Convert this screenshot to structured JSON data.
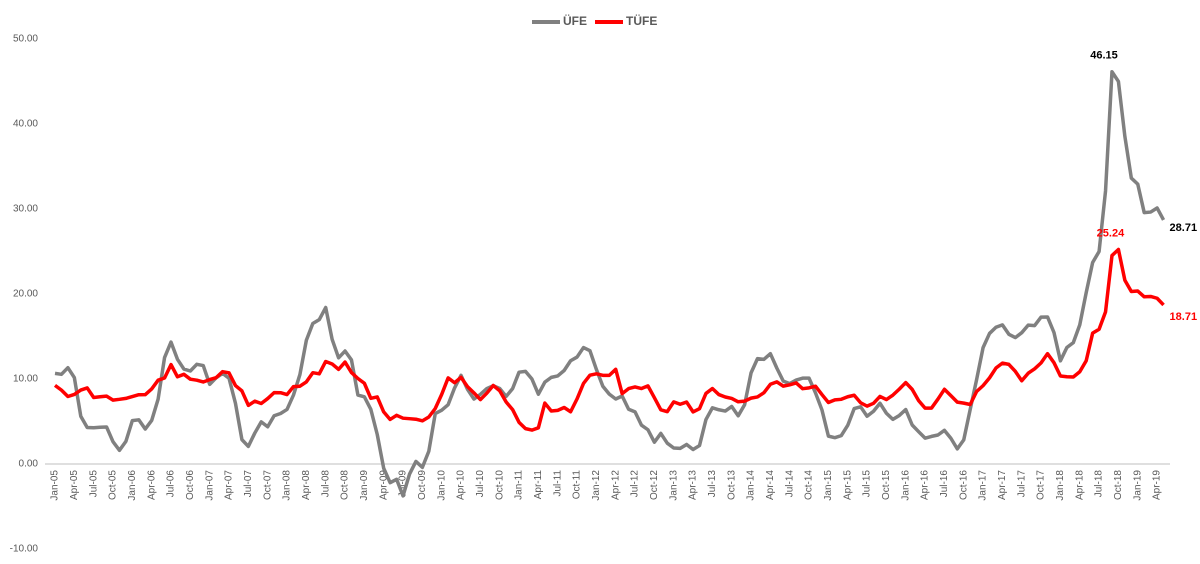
{
  "chart_data": {
    "type": "line",
    "categories": [
      "Jan-05",
      null,
      null,
      "Apr-05",
      null,
      null,
      "Jul-05",
      null,
      null,
      "Oct-05",
      null,
      null,
      "Jan-06",
      null,
      null,
      "Apr-06",
      null,
      null,
      "Jul-06",
      null,
      null,
      "Oct-06",
      null,
      null,
      "Jan-07",
      null,
      null,
      "Apr-07",
      null,
      null,
      "Jul-07",
      null,
      null,
      "Oct-07",
      null,
      null,
      "Jan-08",
      null,
      null,
      "Apr-08",
      null,
      null,
      "Jul-08",
      null,
      null,
      "Oct-08",
      null,
      null,
      "Jan-09",
      null,
      null,
      "Apr-09",
      null,
      null,
      "Jul-09",
      null,
      null,
      "Oct-09",
      null,
      null,
      "Jan-10",
      null,
      null,
      "Apr-10",
      null,
      null,
      "Jul-10",
      null,
      null,
      "Oct-10",
      null,
      null,
      "Jan-11",
      null,
      null,
      "Apr-11",
      null,
      null,
      "Jul-11",
      null,
      null,
      "Oct-11",
      null,
      null,
      "Jan-12",
      null,
      null,
      "Apr-12",
      null,
      null,
      "Jul-12",
      null,
      null,
      "Oct-12",
      null,
      null,
      "Jan-13",
      null,
      null,
      "Apr-13",
      null,
      null,
      "Jul-13",
      null,
      null,
      "Oct-13",
      null,
      null,
      "Jan-14",
      null,
      null,
      "Apr-14",
      null,
      null,
      "Jul-14",
      null,
      null,
      "Oct-14",
      null,
      null,
      "Jan-15",
      null,
      null,
      "Apr-15",
      null,
      null,
      "Jul-15",
      null,
      null,
      "Oct-15",
      null,
      null,
      "Jan-16",
      null,
      null,
      "Apr-16",
      null,
      null,
      "Jul-16",
      null,
      null,
      "Oct-16",
      null,
      null,
      "Jan-17",
      null,
      null,
      "Apr-17",
      null,
      null,
      "Jul-17",
      null,
      null,
      "Oct-17",
      null,
      null,
      "Jan-18",
      null,
      null,
      "Apr-18",
      null,
      null,
      "Jul-18",
      null,
      null,
      "Oct-18",
      null,
      null,
      "Jan-19",
      null,
      null,
      "Apr-19",
      null
    ],
    "series": [
      {
        "name": "ÜFE",
        "color": "#808080",
        "values": [
          10.66,
          10.55,
          11.33,
          10.17,
          5.62,
          4.3,
          4.26,
          4.32,
          4.36,
          2.62,
          1.61,
          2.66,
          5.1,
          5.2,
          4.11,
          5.12,
          7.63,
          12.52,
          14.34,
          12.32,
          11.17,
          10.94,
          11.73,
          11.58,
          9.37,
          10.14,
          10.66,
          10.09,
          7.14,
          2.87,
          2.07,
          3.64,
          4.96,
          4.38,
          5.68,
          5.94,
          6.42,
          8.11,
          10.52,
          14.56,
          16.53,
          16.98,
          18.41,
          14.67,
          12.49,
          13.29,
          12.24,
          8.11,
          7.9,
          6.43,
          3.47,
          -0.5,
          -2.2,
          -1.8,
          -3.75,
          -1.2,
          0.3,
          -0.4,
          1.5,
          5.93,
          6.33,
          6.98,
          8.95,
          10.43,
          8.79,
          7.64,
          8.19,
          8.87,
          9.21,
          8.88,
          7.95,
          8.87,
          10.8,
          10.9,
          10.0,
          8.21,
          9.63,
          10.19,
          10.36,
          11.0,
          12.15,
          12.58,
          13.7,
          13.33,
          11.13,
          9.15,
          8.22,
          7.65,
          8.0,
          6.44,
          6.13,
          4.56,
          4.03,
          2.57,
          3.6,
          2.45,
          1.88,
          1.84,
          2.3,
          1.7,
          2.17,
          5.23,
          6.61,
          6.38,
          6.23,
          6.77,
          5.67,
          6.97,
          10.72,
          12.4,
          12.31,
          12.98,
          11.28,
          9.75,
          9.46,
          9.88,
          10.1,
          10.1,
          8.36,
          6.36,
          3.28,
          3.1,
          3.34,
          4.55,
          6.52,
          6.73,
          5.62,
          6.21,
          7.15,
          5.97,
          5.25,
          5.71,
          6.4,
          4.59,
          3.8,
          3.04,
          3.25,
          3.41,
          3.96,
          3.03,
          1.78,
          2.84,
          6.41,
          9.94,
          13.69,
          15.36,
          16.09,
          16.37,
          15.26,
          14.87,
          15.45,
          16.34,
          16.28,
          17.28,
          17.3,
          15.47,
          12.14,
          13.71,
          14.28,
          16.37,
          20.16,
          23.71,
          25.0,
          32.13,
          46.15,
          45.01,
          38.54,
          33.64,
          32.93,
          29.58,
          29.64,
          30.12,
          28.71
        ],
        "value_labels": {
          "164": "46.15",
          "172": "28.71"
        }
      },
      {
        "name": "TÜFE",
        "color": "#ff0000",
        "values": [
          9.25,
          8.69,
          7.94,
          8.18,
          8.7,
          8.95,
          7.82,
          7.91,
          7.99,
          7.52,
          7.61,
          7.72,
          7.93,
          8.15,
          8.16,
          8.83,
          9.86,
          10.12,
          11.69,
          10.26,
          10.55,
          9.98,
          9.86,
          9.65,
          9.93,
          10.16,
          10.86,
          10.72,
          9.23,
          8.6,
          6.9,
          7.39,
          7.12,
          7.7,
          8.4,
          8.39,
          8.17,
          9.1,
          9.15,
          9.66,
          10.74,
          10.61,
          12.06,
          11.77,
          11.13,
          11.99,
          10.76,
          10.06,
          9.5,
          7.73,
          7.89,
          6.13,
          5.24,
          5.73,
          5.39,
          5.33,
          5.27,
          5.08,
          5.53,
          6.53,
          8.19,
          10.13,
          9.56,
          10.19,
          9.1,
          8.37,
          7.58,
          8.33,
          9.24,
          8.62,
          7.29,
          6.4,
          4.9,
          4.16,
          3.99,
          4.26,
          7.17,
          6.24,
          6.31,
          6.65,
          6.15,
          7.66,
          9.48,
          10.45,
          10.61,
          10.43,
          10.43,
          11.14,
          8.28,
          8.87,
          9.07,
          8.88,
          9.19,
          7.8,
          6.37,
          6.16,
          7.31,
          7.03,
          7.29,
          6.13,
          6.51,
          8.3,
          8.88,
          8.17,
          7.88,
          7.71,
          7.32,
          7.4,
          7.75,
          7.89,
          8.39,
          9.38,
          9.66,
          9.16,
          9.32,
          9.54,
          8.86,
          8.96,
          9.15,
          8.17,
          7.24,
          7.55,
          7.61,
          7.91,
          8.09,
          7.2,
          6.81,
          7.14,
          7.95,
          7.58,
          8.1,
          8.81,
          9.58,
          8.78,
          7.46,
          6.57,
          6.58,
          7.64,
          8.79,
          8.05,
          7.28,
          7.16,
          7.0,
          8.53,
          9.22,
          10.13,
          11.29,
          11.87,
          11.72,
          10.9,
          9.79,
          10.68,
          11.2,
          11.9,
          12.98,
          11.92,
          10.35,
          10.26,
          10.23,
          10.85,
          12.15,
          15.39,
          15.85,
          17.9,
          24.52,
          25.24,
          21.62,
          20.3,
          20.35,
          19.67,
          19.71,
          19.5,
          18.71
        ],
        "value_labels": {
          "165": "25.24",
          "172": "18.71"
        }
      }
    ],
    "ylim": [
      -10,
      50
    ],
    "yticks": [
      {
        "value": -10,
        "label": "-10.00"
      },
      {
        "value": 0,
        "label": "0.00"
      },
      {
        "value": 10,
        "label": "10.00"
      },
      {
        "value": 20,
        "label": "20.00"
      },
      {
        "value": 30,
        "label": "30.00"
      },
      {
        "value": 40,
        "label": "40.00"
      },
      {
        "value": 50,
        "label": "50.00"
      }
    ],
    "grid": false,
    "legend": "top"
  }
}
